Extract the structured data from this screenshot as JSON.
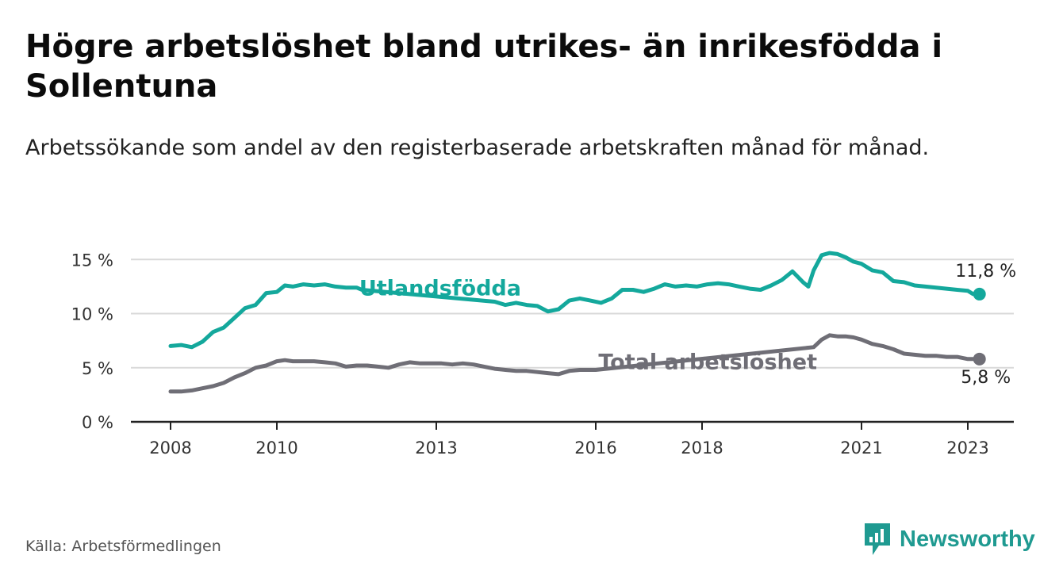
{
  "title": "Högre arbetslöshet bland utrikes- än inrikesfödda i Sollentuna",
  "subtitle": "Arbetssökande som andel av den registerbaserade arbetskraften månad för månad.",
  "source": "Källa: Arbetsförmedlingen",
  "brand": {
    "name": "Newsworthy",
    "logo_icon": "bar-chart-logo-icon"
  },
  "colors": {
    "foreign": "#14a89c",
    "total": "#6f6e76",
    "grid": "#d9d9d9",
    "axis": "#222222",
    "brand": "#1f9a91"
  },
  "chart_data": {
    "type": "line",
    "title": "Högre arbetslöshet bland utrikes- än inrikesfödda i Sollentuna",
    "xlabel": "",
    "ylabel": "",
    "ylim": [
      0,
      15
    ],
    "xlim": [
      2007.75,
      2023.8
    ],
    "y_ticks": [
      {
        "value": 0,
        "label": "0 %"
      },
      {
        "value": 5,
        "label": "5 %"
      },
      {
        "value": 10,
        "label": "10 %"
      },
      {
        "value": 15,
        "label": "15 %"
      }
    ],
    "x_ticks": [
      {
        "value": 2008,
        "label": "2008"
      },
      {
        "value": 2010,
        "label": "2010"
      },
      {
        "value": 2013,
        "label": "2013"
      },
      {
        "value": 2016,
        "label": "2016"
      },
      {
        "value": 2018,
        "label": "2018"
      },
      {
        "value": 2021,
        "label": "2021"
      },
      {
        "value": 2023,
        "label": "2023"
      }
    ],
    "grid": true,
    "series": [
      {
        "name": "Utlandsfödda",
        "color": "#14a89c",
        "label_position": {
          "x": 2011.55,
          "y": 12.4
        },
        "end_label": "11,8 %",
        "x": [
          2008.0,
          2008.2,
          2008.4,
          2008.6,
          2008.8,
          2009.0,
          2009.2,
          2009.4,
          2009.6,
          2009.8,
          2010.0,
          2010.15,
          2010.3,
          2010.5,
          2010.7,
          2010.9,
          2011.1,
          2011.3,
          2011.5,
          2011.6,
          2014.1,
          2014.3,
          2014.5,
          2014.7,
          2014.9,
          2015.1,
          2015.3,
          2015.5,
          2015.7,
          2015.9,
          2016.1,
          2016.3,
          2016.5,
          2016.7,
          2016.9,
          2017.1,
          2017.3,
          2017.5,
          2017.7,
          2017.9,
          2018.1,
          2018.3,
          2018.5,
          2018.7,
          2018.9,
          2019.1,
          2019.3,
          2019.5,
          2019.7,
          2019.9,
          2020.0,
          2020.1,
          2020.25,
          2020.4,
          2020.55,
          2020.7,
          2020.85,
          2021.0,
          2021.2,
          2021.4,
          2021.6,
          2021.8,
          2022.0,
          2022.2,
          2022.4,
          2022.6,
          2022.8,
          2023.0,
          2023.1
        ],
        "values": [
          7.0,
          7.1,
          6.9,
          7.4,
          8.3,
          8.7,
          9.6,
          10.5,
          10.8,
          11.9,
          12.0,
          12.6,
          12.5,
          12.7,
          12.6,
          12.7,
          12.5,
          12.4,
          12.4,
          12.2,
          11.1,
          10.8,
          11.0,
          10.8,
          10.7,
          10.2,
          10.4,
          11.2,
          11.4,
          11.2,
          11.0,
          11.4,
          12.2,
          12.2,
          12.0,
          12.3,
          12.7,
          12.5,
          12.6,
          12.5,
          12.7,
          12.8,
          12.7,
          12.5,
          12.3,
          12.2,
          12.6,
          13.1,
          13.9,
          12.9,
          12.5,
          14.0,
          15.4,
          15.6,
          15.5,
          15.2,
          14.8,
          14.6,
          14.0,
          13.8,
          13.0,
          12.9,
          12.6,
          12.5,
          12.4,
          12.3,
          12.2,
          12.1,
          11.8
        ]
      },
      {
        "name": "Total arbetslöshet",
        "color": "#6f6e76",
        "label_position": {
          "x": 2016.05,
          "y": 5.6
        },
        "end_label": "5,8 %",
        "x": [
          2008.0,
          2008.2,
          2008.4,
          2008.6,
          2008.8,
          2009.0,
          2009.2,
          2009.4,
          2009.6,
          2009.8,
          2010.0,
          2010.15,
          2010.3,
          2010.5,
          2010.7,
          2010.9,
          2011.1,
          2011.3,
          2011.5,
          2011.7,
          2011.9,
          2012.1,
          2012.3,
          2012.5,
          2012.7,
          2012.9,
          2013.1,
          2013.3,
          2013.5,
          2013.7,
          2013.9,
          2014.1,
          2014.3,
          2014.5,
          2014.7,
          2014.9,
          2015.1,
          2015.3,
          2015.5,
          2015.7,
          2015.9,
          2016.0,
          2020.1,
          2020.25,
          2020.4,
          2020.55,
          2020.7,
          2020.85,
          2021.0,
          2021.2,
          2021.4,
          2021.6,
          2021.8,
          2022.0,
          2022.2,
          2022.4,
          2022.6,
          2022.8,
          2023.0,
          2023.1
        ],
        "values": [
          2.8,
          2.8,
          2.9,
          3.1,
          3.3,
          3.6,
          4.1,
          4.5,
          5.0,
          5.2,
          5.6,
          5.7,
          5.6,
          5.6,
          5.6,
          5.5,
          5.4,
          5.1,
          5.2,
          5.2,
          5.1,
          5.0,
          5.3,
          5.5,
          5.4,
          5.4,
          5.4,
          5.3,
          5.4,
          5.3,
          5.1,
          4.9,
          4.8,
          4.7,
          4.7,
          4.6,
          4.5,
          4.4,
          4.7,
          4.8,
          4.8,
          4.8,
          6.9,
          7.6,
          8.0,
          7.9,
          7.9,
          7.8,
          7.6,
          7.2,
          7.0,
          6.7,
          6.3,
          6.2,
          6.1,
          6.1,
          6.0,
          6.0,
          5.8,
          5.8
        ]
      }
    ]
  }
}
